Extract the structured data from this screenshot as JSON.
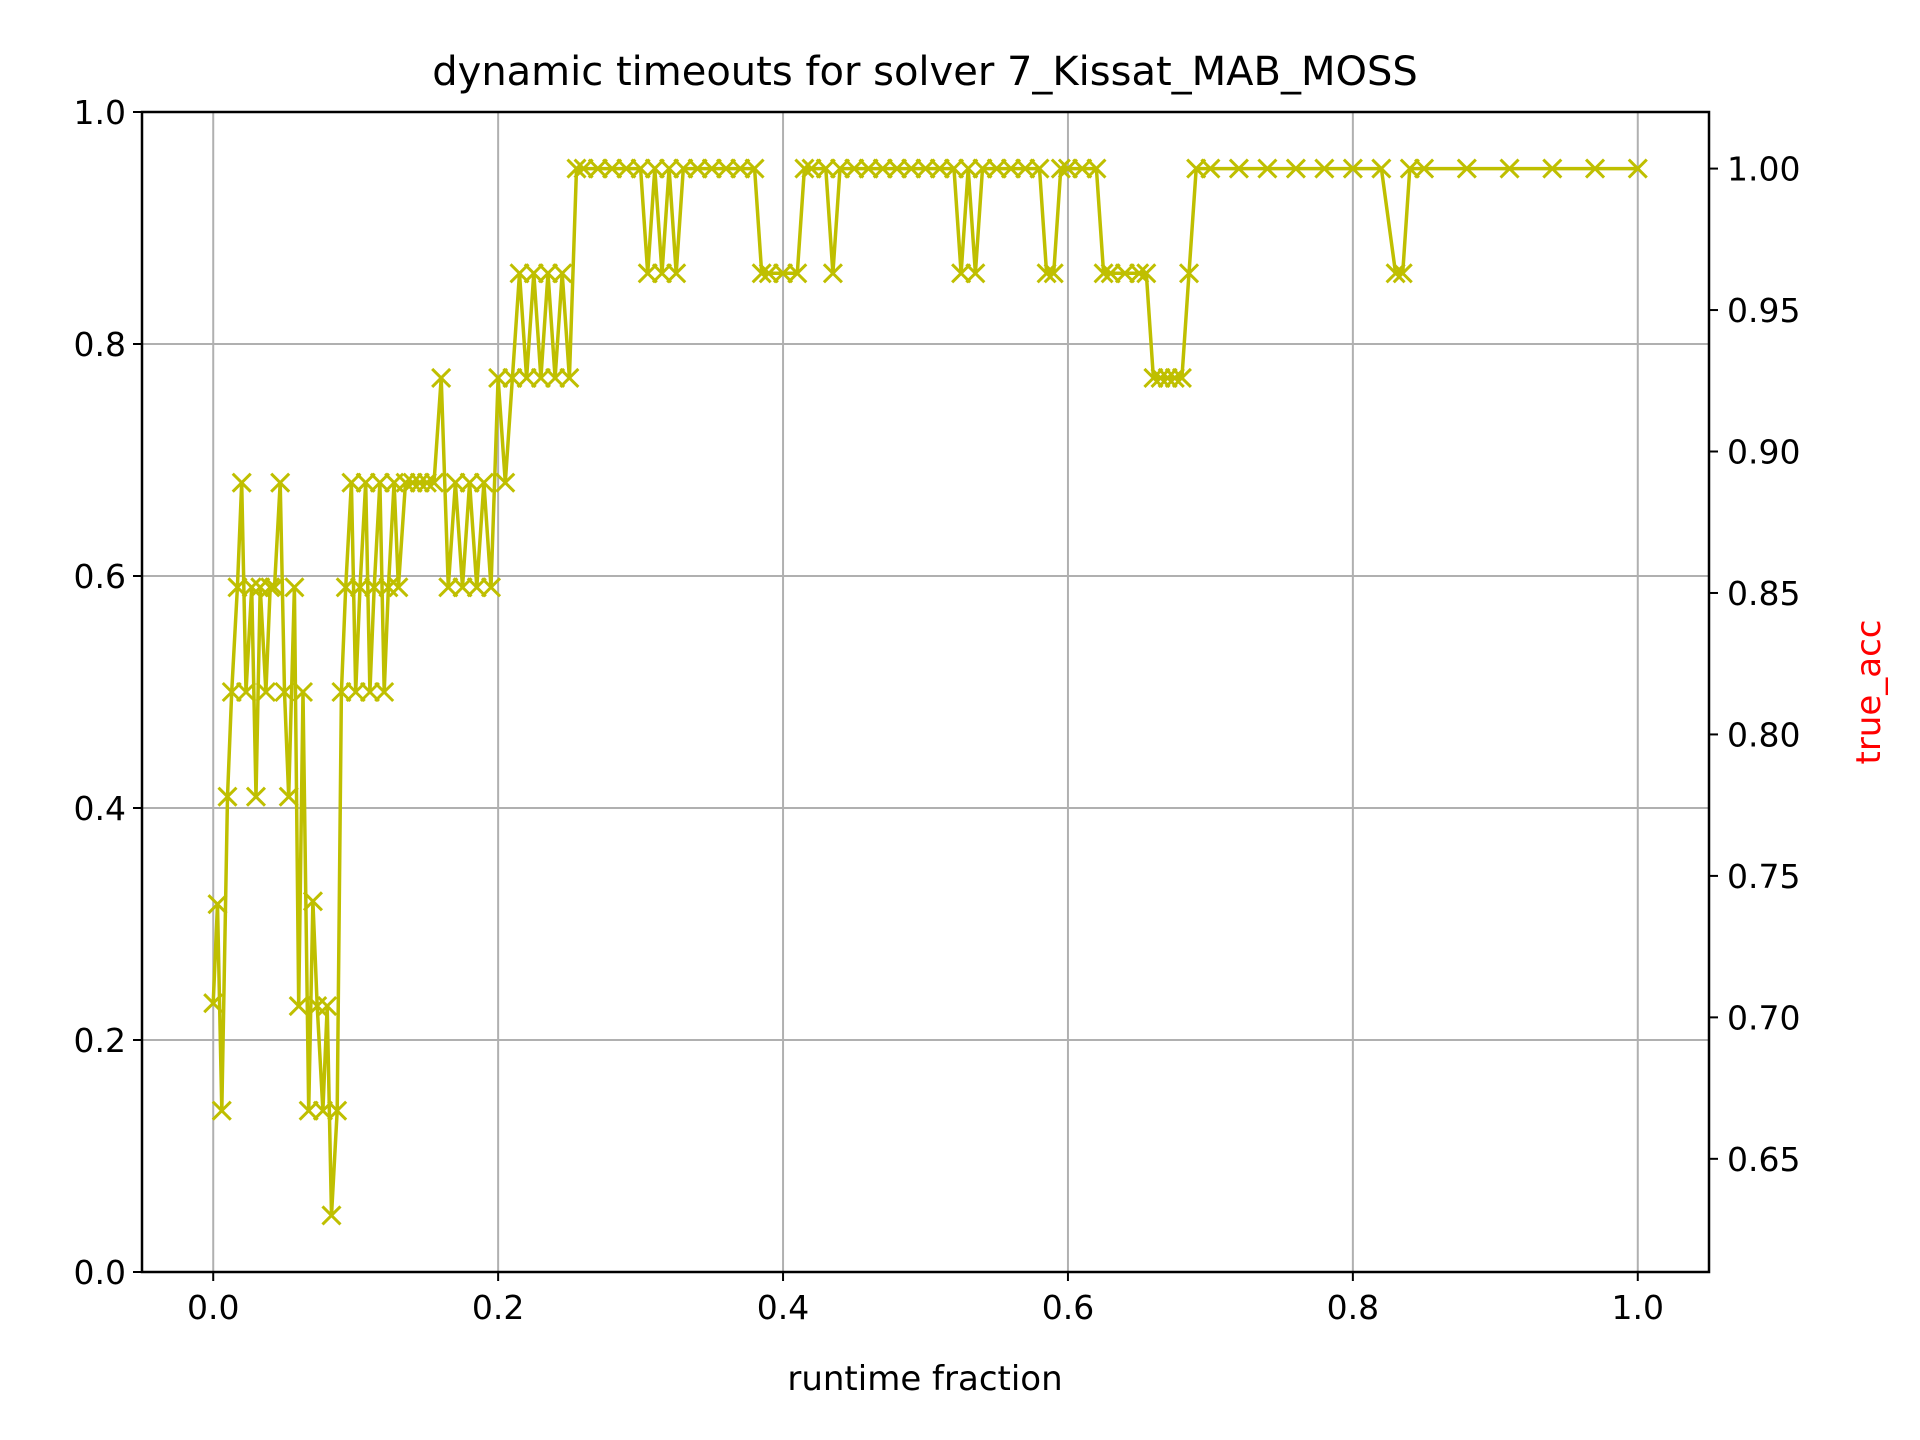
{
  "chart_data": {
    "type": "line",
    "title": "dynamic timeouts for solver 7_Kissat_MAB_MOSS",
    "xlabel": "runtime fraction",
    "ylabel_left": "",
    "ylabel_right": "true_acc",
    "xlim": [
      -0.05,
      1.05
    ],
    "ylim_left": [
      0.0,
      1.0
    ],
    "ylim_right": [
      0.61,
      1.02
    ],
    "x_ticks": [
      "0.0",
      "0.2",
      "0.4",
      "0.6",
      "0.8",
      "1.0"
    ],
    "y_ticks_left": [
      "0.0",
      "0.2",
      "0.4",
      "0.6",
      "0.8",
      "1.0"
    ],
    "y_ticks_right": [
      "0.65",
      "0.70",
      "0.75",
      "0.80",
      "0.85",
      "0.90",
      "0.95",
      "1.00"
    ],
    "grid": true,
    "marker": "x",
    "colors": {
      "series": "#bfbf00",
      "right_label": "#ff0000",
      "grid": "#b0b0b0"
    },
    "series": [
      {
        "name": "",
        "axis": "right",
        "x": [
          0.0,
          0.003,
          0.006,
          0.01,
          0.013,
          0.017,
          0.02,
          0.023,
          0.027,
          0.03,
          0.033,
          0.037,
          0.04,
          0.043,
          0.047,
          0.05,
          0.053,
          0.057,
          0.06,
          0.063,
          0.067,
          0.07,
          0.073,
          0.077,
          0.08,
          0.083,
          0.087,
          0.09,
          0.093,
          0.097,
          0.1,
          0.103,
          0.107,
          0.11,
          0.113,
          0.117,
          0.12,
          0.123,
          0.127,
          0.13,
          0.135,
          0.14,
          0.145,
          0.15,
          0.155,
          0.16,
          0.165,
          0.17,
          0.175,
          0.18,
          0.185,
          0.19,
          0.195,
          0.2,
          0.205,
          0.21,
          0.215,
          0.22,
          0.225,
          0.23,
          0.235,
          0.24,
          0.245,
          0.25,
          0.255,
          0.26,
          0.27,
          0.28,
          0.29,
          0.3,
          0.305,
          0.31,
          0.315,
          0.32,
          0.325,
          0.33,
          0.34,
          0.35,
          0.36,
          0.37,
          0.38,
          0.385,
          0.39,
          0.4,
          0.41,
          0.415,
          0.42,
          0.43,
          0.435,
          0.44,
          0.45,
          0.46,
          0.47,
          0.48,
          0.49,
          0.5,
          0.51,
          0.52,
          0.525,
          0.53,
          0.535,
          0.54,
          0.55,
          0.56,
          0.57,
          0.58,
          0.585,
          0.59,
          0.595,
          0.6,
          0.61,
          0.62,
          0.625,
          0.63,
          0.64,
          0.65,
          0.655,
          0.66,
          0.665,
          0.67,
          0.675,
          0.68,
          0.685,
          0.69,
          0.7,
          0.72,
          0.74,
          0.76,
          0.78,
          0.8,
          0.82,
          0.83,
          0.835,
          0.84,
          0.85,
          0.88,
          0.91,
          0.94,
          0.97,
          1.0
        ],
        "y": [
          0.705,
          0.74,
          0.667,
          0.778,
          0.815,
          0.852,
          0.889,
          0.815,
          0.852,
          0.778,
          0.852,
          0.815,
          0.852,
          0.852,
          0.889,
          0.815,
          0.778,
          0.852,
          0.704,
          0.815,
          0.667,
          0.741,
          0.704,
          0.667,
          0.704,
          0.63,
          0.667,
          0.815,
          0.852,
          0.889,
          0.815,
          0.852,
          0.889,
          0.815,
          0.852,
          0.889,
          0.815,
          0.852,
          0.889,
          0.852,
          0.889,
          0.889,
          0.889,
          0.889,
          0.889,
          0.926,
          0.852,
          0.889,
          0.852,
          0.889,
          0.852,
          0.889,
          0.852,
          0.926,
          0.889,
          0.926,
          0.963,
          0.926,
          0.963,
          0.926,
          0.963,
          0.926,
          0.963,
          0.926,
          1.0,
          1.0,
          1.0,
          1.0,
          1.0,
          1.0,
          0.963,
          1.0,
          0.963,
          1.0,
          0.963,
          1.0,
          1.0,
          1.0,
          1.0,
          1.0,
          1.0,
          0.963,
          0.963,
          0.963,
          0.963,
          1.0,
          1.0,
          1.0,
          0.963,
          1.0,
          1.0,
          1.0,
          1.0,
          1.0,
          1.0,
          1.0,
          1.0,
          1.0,
          0.963,
          1.0,
          0.963,
          1.0,
          1.0,
          1.0,
          1.0,
          1.0,
          0.963,
          0.963,
          1.0,
          1.0,
          1.0,
          1.0,
          0.963,
          0.963,
          0.963,
          0.963,
          0.963,
          0.926,
          0.926,
          0.926,
          0.926,
          0.926,
          0.963,
          1.0,
          1.0,
          1.0,
          1.0,
          1.0,
          1.0,
          1.0,
          1.0,
          0.963,
          0.963,
          1.0,
          1.0,
          1.0,
          1.0,
          1.0,
          1.0,
          1.0
        ]
      }
    ]
  }
}
